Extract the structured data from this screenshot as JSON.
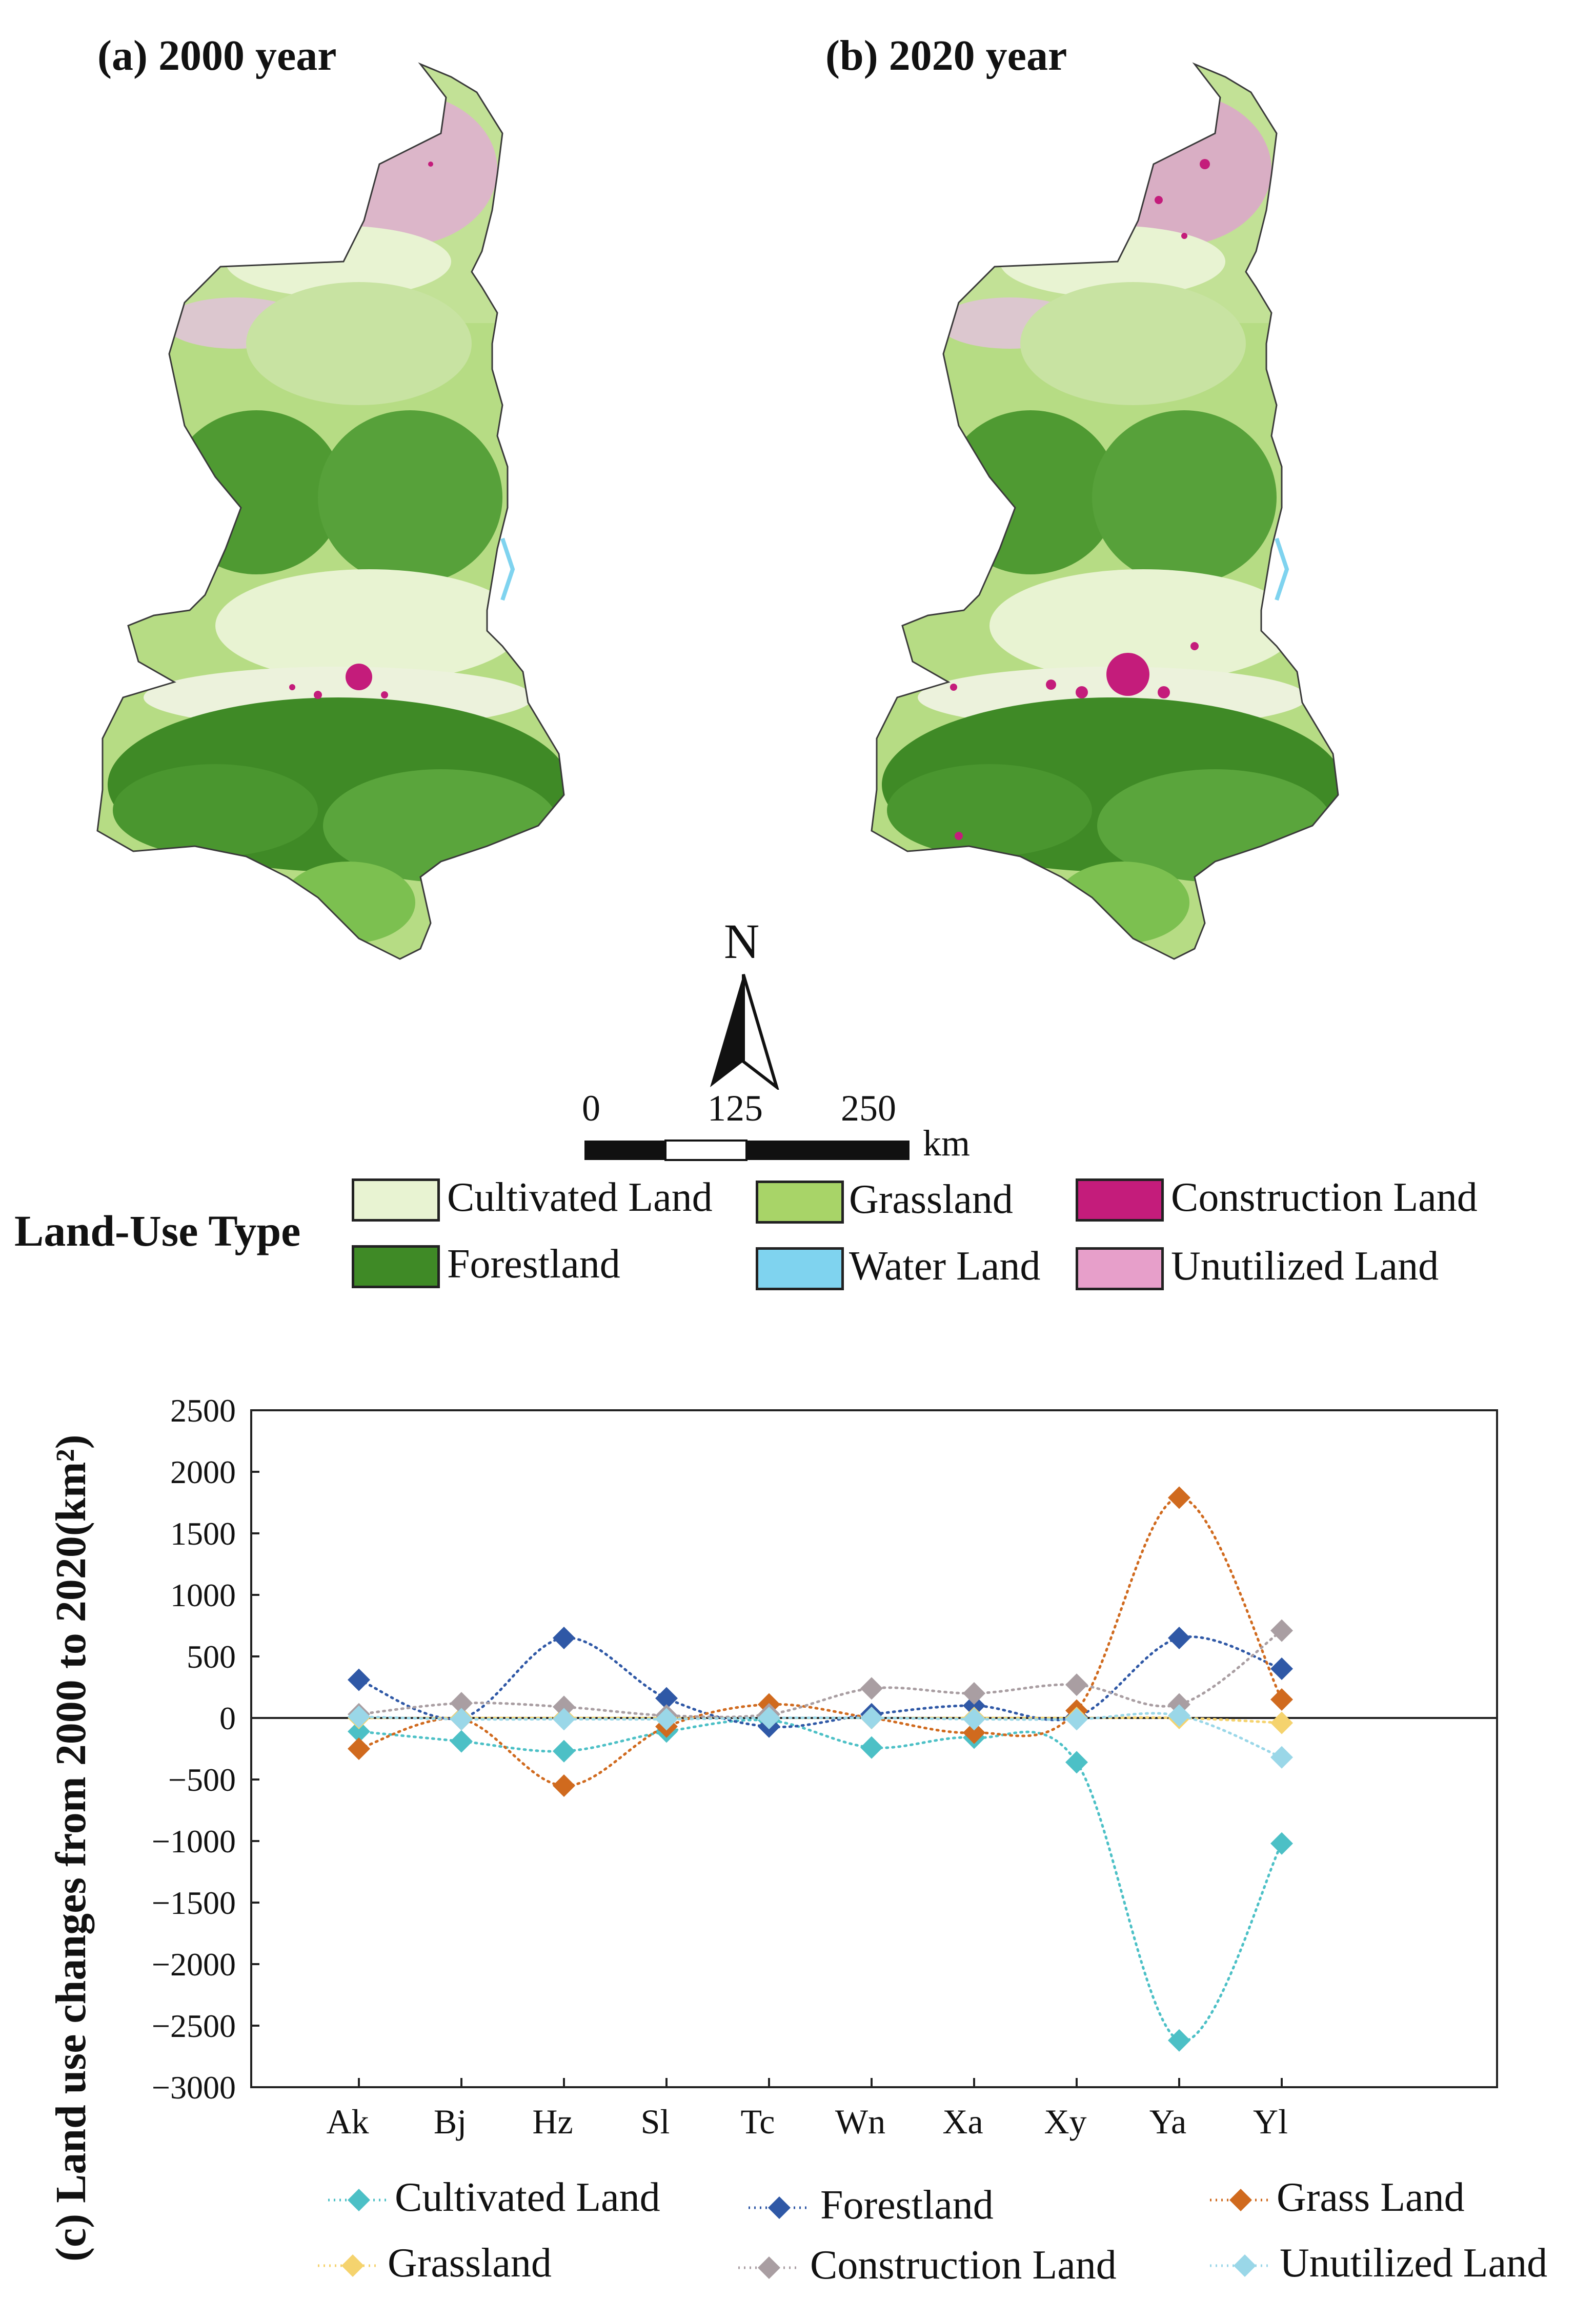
{
  "panels": {
    "a_title": "(a) 2000 year",
    "b_title": "(b) 2020 year",
    "c_ylabel": "(c) Land use changes from 2000 to 2020(km²)"
  },
  "north_arrow": {
    "label": "N"
  },
  "scale_bar": {
    "ticks": [
      "0",
      "125",
      "250"
    ],
    "unit": "km"
  },
  "land_use_legend": {
    "title": "Land-Use Type",
    "items": [
      {
        "label": "Cultivated Land",
        "color": "#e8f3d2"
      },
      {
        "label": "Grassland",
        "color": "#a8d468"
      },
      {
        "label": "Construction Land",
        "color": "#c41c7b"
      },
      {
        "label": "Forestland",
        "color": "#3f8a26"
      },
      {
        "label": "Water Land",
        "color": "#7fd3ef"
      },
      {
        "label": "Unutilized Land",
        "color": "#e79fca"
      }
    ]
  },
  "chart_data": {
    "type": "line",
    "categories": [
      "Ak",
      "Bj",
      "Hz",
      "Sl",
      "Tc",
      "Wn",
      "Xa",
      "Xy",
      "Ya",
      "Yl"
    ],
    "ylim": [
      -3000,
      2500
    ],
    "yticks": [
      "2500",
      "2000",
      "1500",
      "1000",
      "500",
      "0",
      "-500",
      "-1000",
      "-1500",
      "-2000",
      "-2500",
      "-3000"
    ],
    "ylabel": "(c) Land use changes from 2000 to 2020(km²)",
    "xlabel": "",
    "line_style": "dotted smooth with diamond markers",
    "legend_placement": "bottom",
    "series": [
      {
        "name": "Cultivated Land",
        "color": "#4cc0c6",
        "values": [
          -110,
          -190,
          -270,
          -110,
          -20,
          -240,
          -160,
          -360,
          -2620,
          -1020
        ]
      },
      {
        "name": "Forestland",
        "color": "#2f58a6",
        "values": [
          310,
          0,
          650,
          160,
          -70,
          30,
          100,
          10,
          650,
          400
        ]
      },
      {
        "name": "Grass Land",
        "color": "#d06a1e",
        "values": [
          -250,
          -10,
          -550,
          -70,
          110,
          0,
          -120,
          60,
          1790,
          150
        ]
      },
      {
        "name": "Grassland",
        "color": "#f5d36e",
        "values": [
          0,
          0,
          0,
          0,
          0,
          0,
          0,
          0,
          0,
          -40
        ]
      },
      {
        "name": "Construction Land",
        "color": "#a99ea2",
        "values": [
          30,
          120,
          90,
          20,
          30,
          240,
          200,
          270,
          110,
          710
        ]
      },
      {
        "name": "Unutilized Land",
        "color": "#9ad7e8",
        "values": [
          10,
          -10,
          -10,
          -10,
          0,
          0,
          -10,
          -10,
          20,
          -320
        ]
      }
    ]
  }
}
